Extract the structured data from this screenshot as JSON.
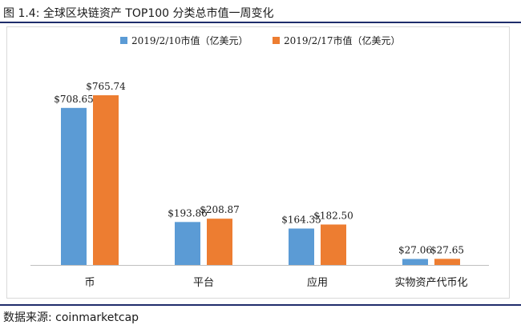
{
  "header": {
    "title": "图 1.4:  全球区块链资产 TOP100 分类总市值一周变化"
  },
  "footer": {
    "source": "数据来源:    coinmarketcap"
  },
  "chart_data": {
    "type": "bar",
    "categories": [
      "币",
      "平台",
      "应用",
      "实物资产代币化"
    ],
    "series": [
      {
        "name": "2019/2/10市值（亿美元）",
        "color": "#5b9bd5",
        "values": [
          708.65,
          193.86,
          164.35,
          27.06
        ],
        "labels": [
          "$708.65",
          "$193.86",
          "$164.35",
          "$27.06"
        ]
      },
      {
        "name": "2019/2/17市值（亿美元）",
        "color": "#ed7d31",
        "values": [
          765.74,
          208.87,
          182.5,
          27.65
        ],
        "labels": [
          "$765.74",
          "$208.87",
          "$182.50",
          "$27.65"
        ]
      }
    ],
    "ylim": [
      0,
      1000
    ],
    "grid": false,
    "legend": "top-center",
    "title": "",
    "xlabel": "",
    "ylabel": ""
  }
}
